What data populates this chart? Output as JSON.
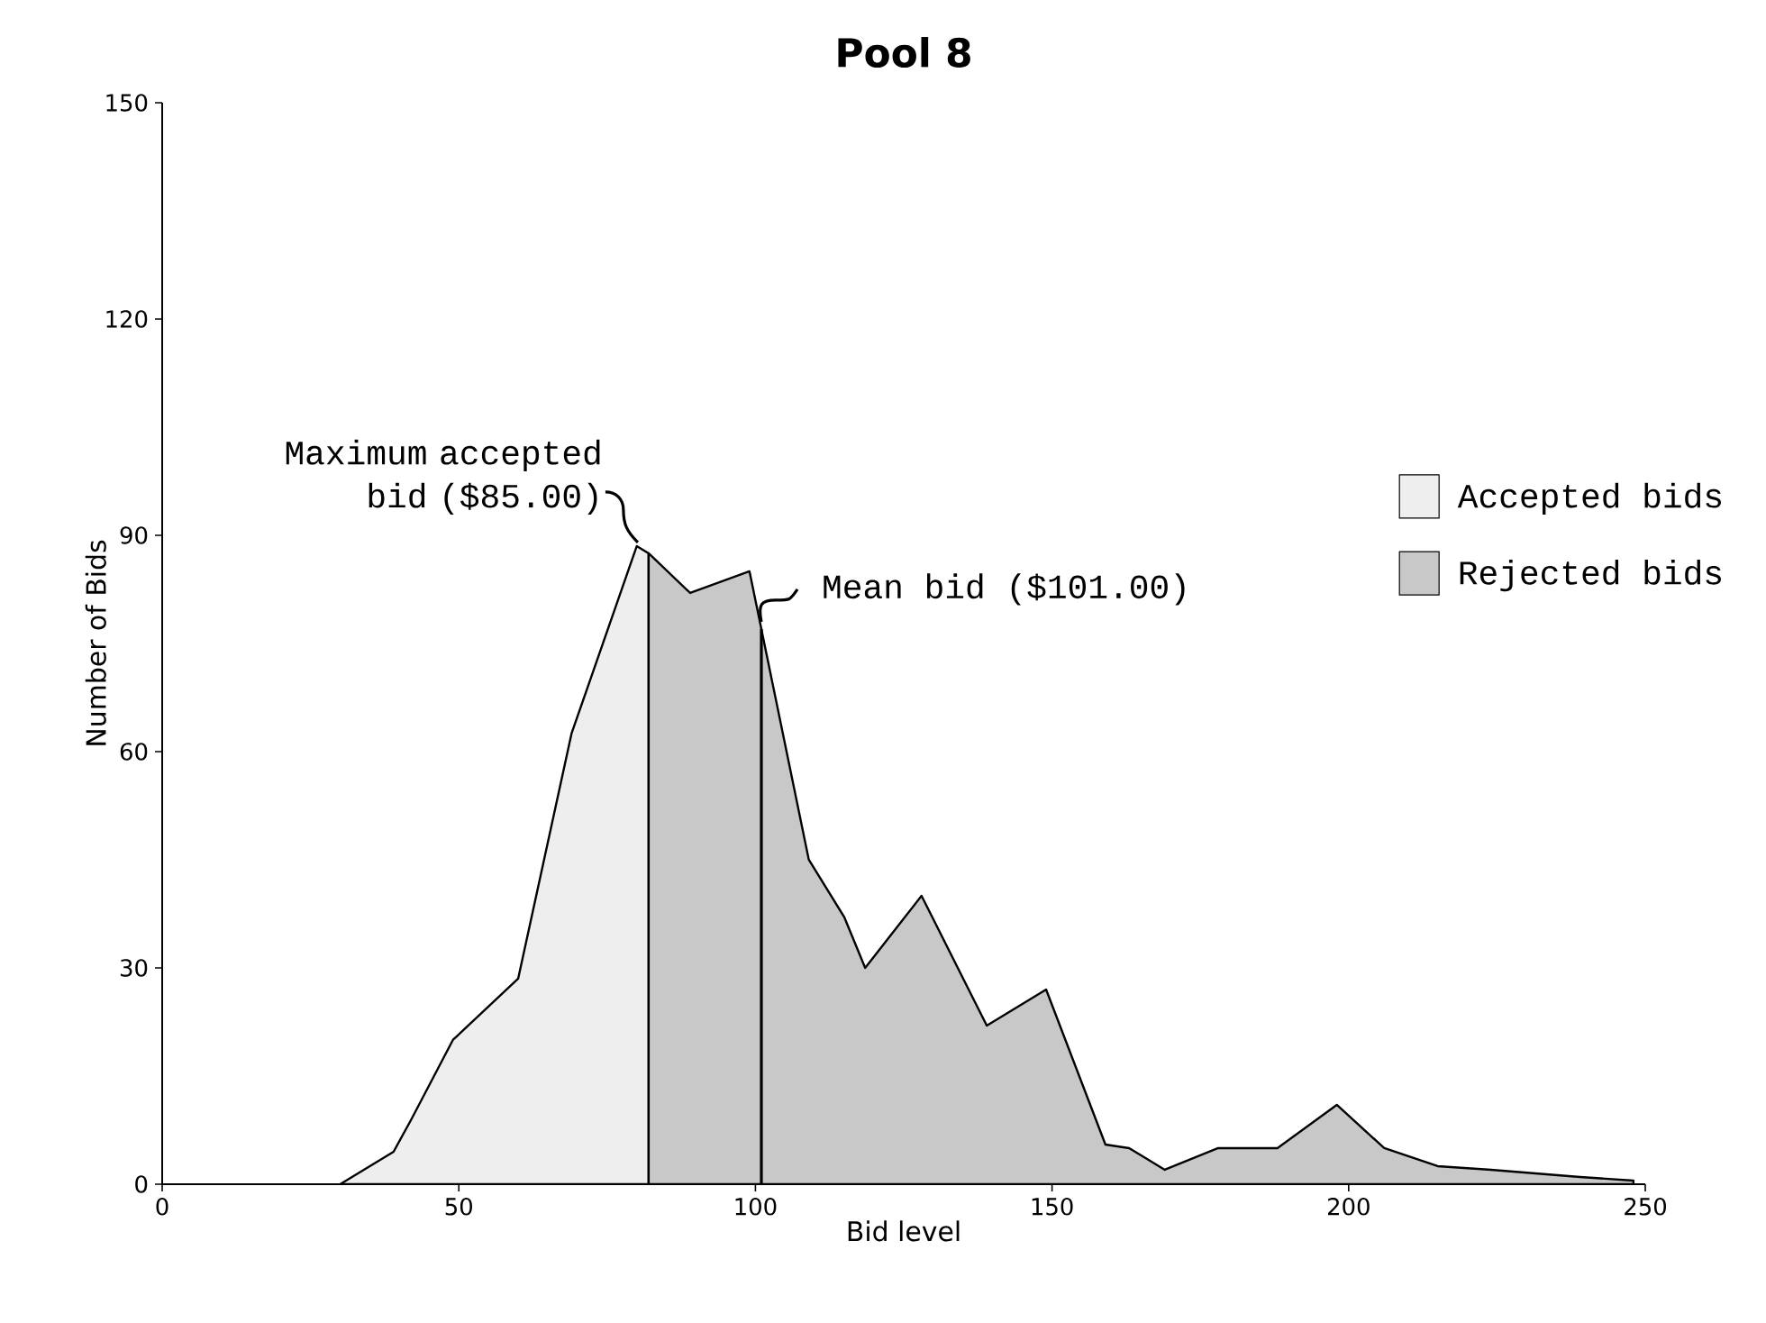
{
  "chart_data": {
    "type": "area",
    "title": "Pool 8",
    "xlabel": "Bid level",
    "ylabel": "Number of Bids",
    "xlim": [
      0,
      250
    ],
    "ylim": [
      0,
      150
    ],
    "xticks": [
      0,
      50,
      100,
      150,
      200,
      250
    ],
    "yticks": [
      0,
      30,
      60,
      90,
      120,
      150
    ],
    "legend": "right",
    "grid": false,
    "series": [
      {
        "name": "Accepted bids",
        "color": "#eeeeee",
        "x": [
          30,
          39,
          42,
          49,
          60,
          69,
          80,
          82
        ],
        "values": [
          0,
          4.5,
          9,
          20,
          28.5,
          62.5,
          88.5,
          87.5
        ]
      },
      {
        "name": "Rejected bids",
        "color": "#c8c8c8",
        "x": [
          82,
          89,
          99,
          109,
          115,
          118.5,
          128,
          139,
          149,
          159,
          163,
          169,
          178,
          188,
          198,
          206,
          215,
          224,
          239,
          248
        ],
        "values": [
          87.5,
          82,
          85,
          45,
          37,
          30,
          40,
          22,
          27,
          5.5,
          5,
          2,
          5,
          5,
          11,
          5,
          2.5,
          2,
          1,
          0.5
        ]
      }
    ],
    "ref_lines": [
      {
        "axis": "x",
        "value": 101,
        "label": "Mean bid ($101.00)"
      }
    ],
    "annotations": [
      {
        "text": "Maximum accepted bid ($85.00)",
        "x": 82,
        "y": 87.5
      }
    ]
  }
}
